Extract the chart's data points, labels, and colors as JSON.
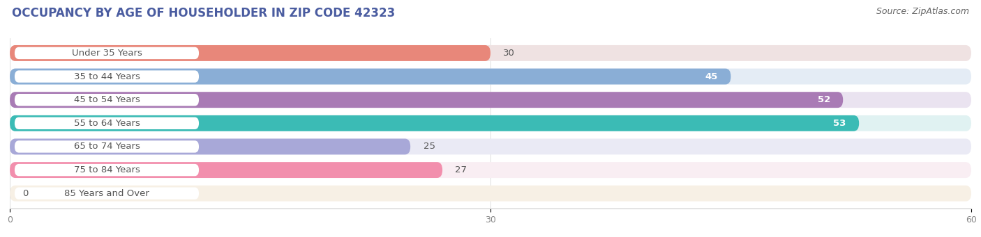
{
  "title": "OCCUPANCY BY AGE OF HOUSEHOLDER IN ZIP CODE 42323",
  "source": "Source: ZipAtlas.com",
  "categories": [
    "Under 35 Years",
    "35 to 44 Years",
    "45 to 54 Years",
    "55 to 64 Years",
    "65 to 74 Years",
    "75 to 84 Years",
    "85 Years and Over"
  ],
  "values": [
    30,
    45,
    52,
    53,
    25,
    27,
    0
  ],
  "bar_colors": [
    "#E8877A",
    "#8AAED6",
    "#A97BB5",
    "#3BBBB5",
    "#A8A8D8",
    "#F28FAD",
    "#F5CFA0"
  ],
  "bar_bg_colors": [
    "#EFE2E2",
    "#E4ECF5",
    "#EAE3F0",
    "#E0F2F2",
    "#EAEAF5",
    "#F9EEF3",
    "#F7F0E5"
  ],
  "xlim": [
    0,
    60
  ],
  "xticks": [
    0,
    30,
    60
  ],
  "title_fontsize": 12,
  "source_fontsize": 9,
  "label_fontsize": 9.5,
  "value_fontsize": 9.5,
  "bar_height": 0.68,
  "figure_bg": "#ffffff",
  "title_color": "#3B5998",
  "label_color": "#555555",
  "value_outside_color": "#555555",
  "value_inside_color": "#ffffff"
}
